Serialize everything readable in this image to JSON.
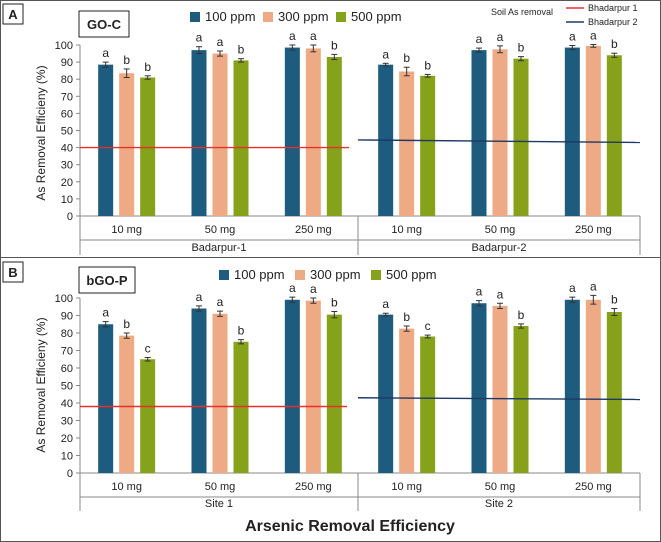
{
  "figure_title": "Arsenic Removal Efficiency",
  "colors": {
    "p100": "#1d5c7e",
    "p300": "#eeaa85",
    "p500": "#85a21a",
    "line1": "#e8302a",
    "line2": "#1f3864"
  },
  "chart_data": [
    {
      "type": "bar",
      "panel_label": "A",
      "title": "GO-C",
      "ylabel": "As Removal Efficieny (%)",
      "ylim": [
        0,
        100
      ],
      "yticks": [
        "0",
        "10",
        "20",
        "30",
        "40",
        "50",
        "60",
        "70",
        "80",
        "90",
        "100"
      ],
      "categories": [
        "10 mg",
        "50 mg",
        "250 mg",
        "10 mg",
        "50 mg",
        "250 mg"
      ],
      "groups": [
        "Badarpur-1",
        "Badarpur-2"
      ],
      "series": [
        {
          "name": "100 ppm",
          "values": [
            88.5,
            97,
            98.5,
            88.5,
            97,
            98.5
          ],
          "errors": [
            1.5,
            2,
            1.5,
            0.8,
            1.2,
            1.2
          ],
          "letters": [
            "a",
            "a",
            "a",
            "a",
            "a",
            "a"
          ]
        },
        {
          "name": "300 ppm",
          "values": [
            83.5,
            95,
            98,
            84.5,
            97.5,
            99.5
          ],
          "errors": [
            2.5,
            1.5,
            2,
            2.5,
            2,
            0.8
          ],
          "letters": [
            "b",
            "a",
            "a",
            "b",
            "a",
            "a"
          ]
        },
        {
          "name": "500 ppm",
          "values": [
            81,
            91,
            93,
            82,
            92,
            94
          ],
          "errors": [
            1,
            1,
            1.5,
            0.8,
            1.2,
            1.2
          ],
          "letters": [
            "b",
            "b",
            "b",
            "b",
            "b",
            "b"
          ]
        }
      ],
      "reference_lines": [
        {
          "name": "Bhadarpur 1",
          "y_start": 40,
          "y_end": 40,
          "span": "Badarpur-1"
        },
        {
          "name": "Bhadarpur 2",
          "y_start": 44.5,
          "y_end": 43,
          "span": "Badarpur-2"
        }
      ],
      "annotation": "Soil As removal",
      "legend_extra": [
        "Bhadarpur 1",
        "Bhadarpur 2"
      ]
    },
    {
      "type": "bar",
      "panel_label": "B",
      "title": "bGO-P",
      "ylabel": "As Removal Efficieny (%)",
      "ylim": [
        0,
        100
      ],
      "yticks": [
        "0",
        "10",
        "20",
        "30",
        "40",
        "50",
        "60",
        "70",
        "80",
        "90",
        "100"
      ],
      "categories": [
        "10 mg",
        "50 mg",
        "250 mg",
        "10 mg",
        "50 mg",
        "250 mg"
      ],
      "groups": [
        "Site 1",
        "Site 2"
      ],
      "series": [
        {
          "name": "100 ppm",
          "values": [
            85,
            94,
            99,
            90.5,
            97,
            99
          ],
          "errors": [
            1.5,
            1.5,
            1.5,
            0.8,
            1.5,
            1.5
          ],
          "letters": [
            "a",
            "a",
            "a",
            "a",
            "a",
            "a"
          ]
        },
        {
          "name": "300 ppm",
          "values": [
            78.5,
            91,
            98.5,
            82.5,
            95.5,
            99
          ],
          "errors": [
            1.5,
            1.5,
            1.5,
            1.5,
            1.5,
            2.5
          ],
          "letters": [
            "b",
            "a",
            "a",
            "b",
            "a",
            "a"
          ]
        },
        {
          "name": "500 ppm",
          "values": [
            65,
            75,
            90.5,
            78,
            84,
            92
          ],
          "errors": [
            1,
            1.2,
            1.8,
            0.8,
            1.2,
            2
          ],
          "letters": [
            "c",
            "b",
            "b",
            "c",
            "b",
            "b"
          ]
        }
      ],
      "reference_lines": [
        {
          "name": "Bhadarpur 1",
          "y_start": 38,
          "y_end": 38,
          "span": "Site 1"
        },
        {
          "name": "Bhadarpur 2",
          "y_start": 43,
          "y_end": 42,
          "span": "Site 2"
        }
      ]
    }
  ]
}
